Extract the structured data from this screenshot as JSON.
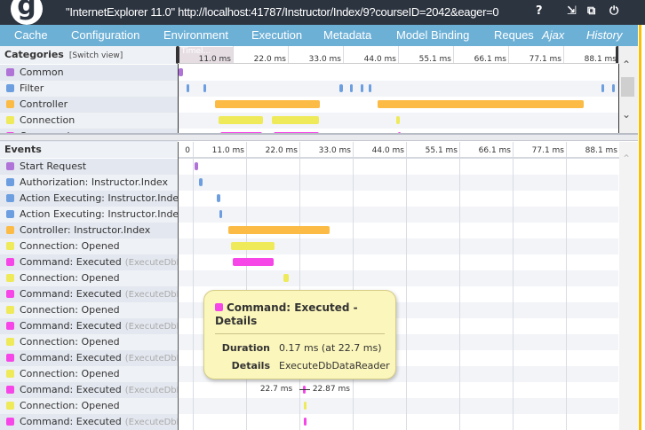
{
  "header": {
    "title": "\"InternetExplorer 11.0\"  http://localhost:41787/Instructor/Index/9?courseID=2042&eager=0",
    "help": "?",
    "icons": [
      "download-icon",
      "popout-icon",
      "power-icon"
    ]
  },
  "nav": {
    "tabs": [
      "Cache",
      "Configuration",
      "Environment",
      "Execution",
      "Metadata",
      "Model Binding",
      "Reques",
      "Ajax",
      "History"
    ]
  },
  "categories": {
    "title": "Categories",
    "switch": "[Switch view]",
    "ticks": [
      "11.0 ms",
      "22.0 ms",
      "33.0 ms",
      "44.0 ms",
      "55.1 ms",
      "66.1 ms",
      "77.1 ms",
      "88.1 ms"
    ],
    "handle_label": "Timel...",
    "items": [
      {
        "label": "Common",
        "color": "#b073d8",
        "spans": [
          [
            0,
            0.8
          ]
        ]
      },
      {
        "label": "Filter",
        "color": "#6d9fe0",
        "spans": [
          [
            1.6,
            0.6
          ],
          [
            4.9,
            0.6
          ],
          [
            32.2,
            0.6
          ],
          [
            34.2,
            0.6
          ],
          [
            36.3,
            0.6
          ],
          [
            38.0,
            0.4
          ],
          [
            84.4,
            0.5
          ],
          [
            86.6,
            0.6
          ]
        ]
      },
      {
        "label": "Controller",
        "color": "#fbbb45",
        "spans": [
          [
            7.3,
            20.9
          ],
          [
            39.7,
            41.2
          ]
        ]
      },
      {
        "label": "Connection",
        "color": "#eeea5a",
        "spans": [
          [
            7.9,
            9.0
          ],
          [
            18.7,
            9.4
          ],
          [
            43.5,
            0.6
          ]
        ]
      },
      {
        "label": "Command",
        "color": "#f646e8",
        "spans": [
          [
            8.3,
            8.3
          ],
          [
            18.9,
            9.2
          ],
          [
            43.8,
            0.4
          ]
        ]
      }
    ]
  },
  "events": {
    "title": "Events",
    "ticks": [
      "0",
      "11.0 ms",
      "22.0 ms",
      "33.0 ms",
      "44.0 ms",
      "55.1 ms",
      "66.1 ms",
      "77.1 ms",
      "88.1 ms"
    ],
    "items": [
      {
        "label": "Start Request",
        "color": "#b073d8",
        "start": 0.4,
        "dur": 0.7
      },
      {
        "label": "Authorization: Instructor.Index",
        "color": "#6d9fe0",
        "start": 1.3,
        "dur": 0.7
      },
      {
        "label": "Action Executing: Instructor.Index",
        "color": "#6d9fe0",
        "start": 4.9,
        "dur": 0.7
      },
      {
        "label": "Action Executing: Instructor.Index",
        "color": "#6d9fe0",
        "start": 5.5,
        "dur": 0.6
      },
      {
        "label": "Controller: Instructor.Index",
        "color": "#fbbb45",
        "start": 7.3,
        "dur": 20.9
      },
      {
        "label": "Connection: Opened",
        "color": "#eeea5a",
        "start": 7.9,
        "dur": 9.0
      },
      {
        "label": "Command: Executed",
        "sub": "(ExecuteDbDat...",
        "color": "#f646e8",
        "start": 8.3,
        "dur": 8.3
      },
      {
        "label": "Connection: Opened",
        "color": "#eeea5a",
        "start": 18.7,
        "dur": 1.1
      },
      {
        "label": "Command: Executed",
        "sub": "(ExecuteDbDat...",
        "color": "#f646e8"
      },
      {
        "label": "Connection: Opened",
        "color": "#eeea5a"
      },
      {
        "label": "Command: Executed",
        "sub": "(ExecuteDbDat...",
        "color": "#f646e8"
      },
      {
        "label": "Connection: Opened",
        "color": "#eeea5a"
      },
      {
        "label": "Command: Executed",
        "sub": "(ExecuteDbDat...",
        "color": "#f646e8"
      },
      {
        "label": "Connection: Opened",
        "color": "#eeea5a"
      },
      {
        "label": "Command: Executed",
        "sub": "(ExecuteDbDat...",
        "color": "#f646e8",
        "start": 22.7,
        "dur": 0.17,
        "from": "22.7 ms",
        "to": "22.87 ms"
      },
      {
        "label": "Connection: Opened",
        "color": "#eeea5a",
        "start": 23.0,
        "dur": 0.4
      },
      {
        "label": "Command: Executed",
        "sub": "(ExecuteDbDat...",
        "color": "#f646e8",
        "start": 23.0,
        "dur": 0.4
      }
    ]
  },
  "tooltip": {
    "title": "Command: Executed -",
    "title2": "Details",
    "color": "#f646e8",
    "duration_label": "Duration",
    "duration": "0.17 ms (at 22.7 ms)",
    "details_label": "Details",
    "details": "ExecuteDbDataReader"
  }
}
